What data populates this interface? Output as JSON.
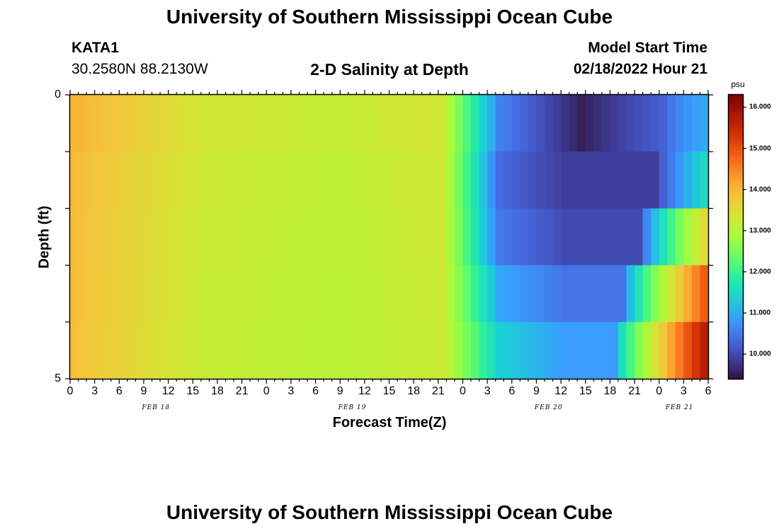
{
  "page_title": "University of Southern Mississippi Ocean Cube",
  "footer_title": "University of Southern Mississippi Ocean Cube",
  "station": {
    "id": "KATA1",
    "coords": "30.2580N  88.2130W"
  },
  "model_start": {
    "label": "Model Start Time",
    "value": "02/18/2022 Hour 21"
  },
  "chart_data": {
    "type": "heatmap",
    "title": "2-D Salinity at Depth",
    "xlabel": "Forecast Time(Z)",
    "ylabel": "Depth (ft)",
    "y_ticks": [
      "0",
      "5"
    ],
    "ylim": [
      0,
      5
    ],
    "hours_per_column": 1,
    "total_hours": 78,
    "x_ticks": [
      "0",
      "3",
      "6",
      "9",
      "12",
      "15",
      "18",
      "21",
      "0",
      "3",
      "6",
      "9",
      "12",
      "15",
      "18",
      "21",
      "0",
      "3",
      "6",
      "9",
      "12",
      "15",
      "18",
      "21",
      "0",
      "3",
      "6"
    ],
    "day_labels": [
      "FEB 18",
      "FEB 19",
      "FEB 20",
      "FEB 21"
    ],
    "depth_layers": 5,
    "colorbar": {
      "unit": "psu",
      "min": 9.4,
      "max": 16.3,
      "labels": [
        "16.000",
        "15.000",
        "14.000",
        "13.000",
        "12.000",
        "11.000",
        "10.000"
      ],
      "label_values": [
        16,
        15,
        14,
        13,
        12,
        11,
        10
      ]
    },
    "salinity_psu": {
      "hour0_all_depths": 13.95,
      "hour16_all_depths": 13.3,
      "hour42_all_depths": 13.3,
      "drop_start_hour": 45,
      "layer_profiles": [
        {
          "layer": 1,
          "surface_depth_min": 9.55,
          "min_hour": 62,
          "hour74": 10.4,
          "hour78": 11.0
        },
        {
          "layer": 2,
          "min": 9.85,
          "hour72": 10.5,
          "hour78": 11.7
        },
        {
          "layer": 3,
          "min": 10.0,
          "hour70": 10.7,
          "hour78": 13.9
        },
        {
          "layer": 4,
          "min": 10.45,
          "hour68": 11.0,
          "hour78": 15.2
        },
        {
          "layer": 5,
          "min": 10.85,
          "hour68": 11.1,
          "hour78": 16.0
        }
      ]
    }
  }
}
